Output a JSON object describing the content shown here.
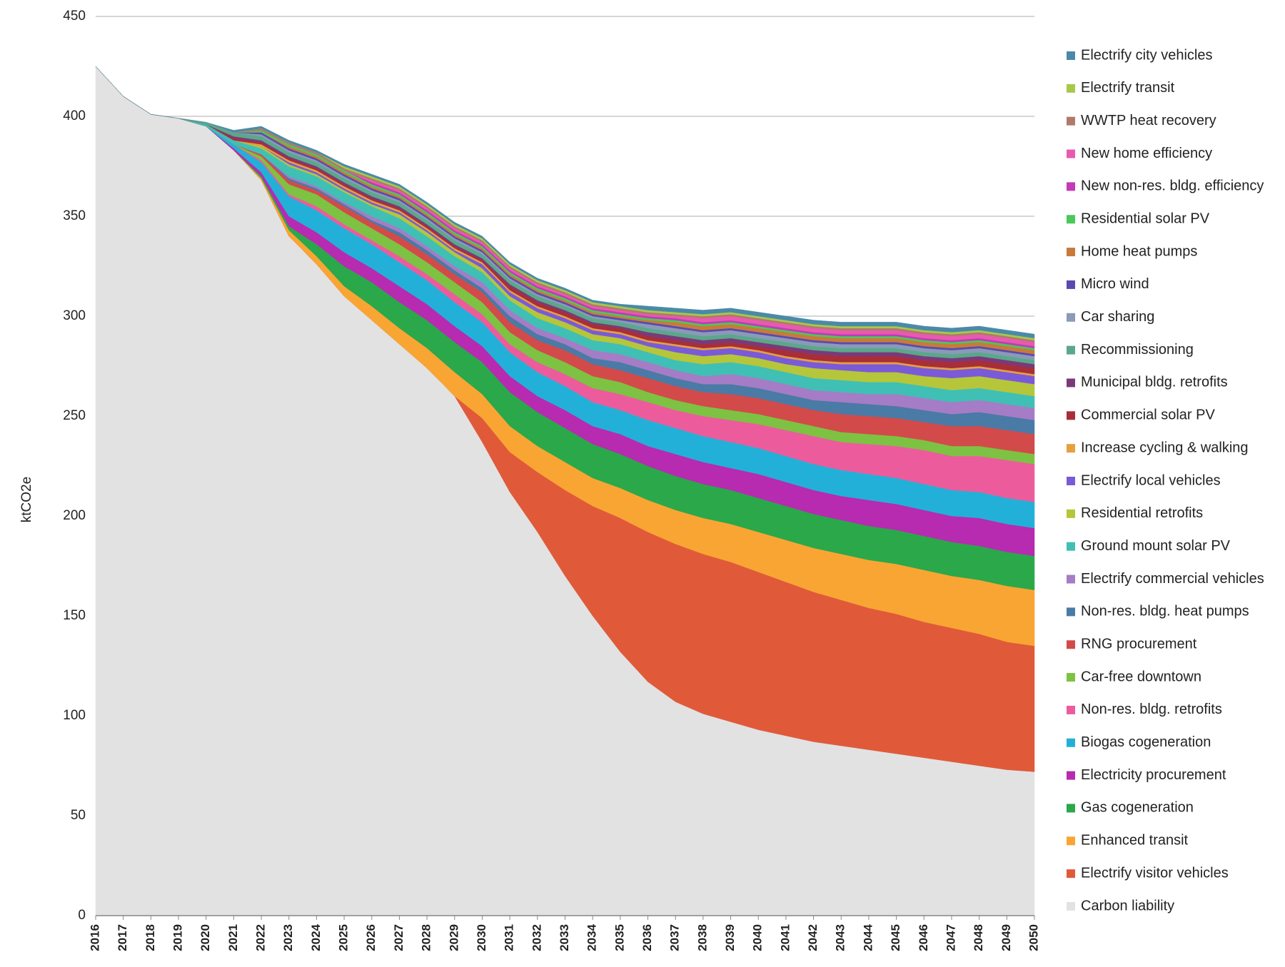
{
  "chart_data": {
    "type": "stacked_area",
    "y_label": "ktCO2e",
    "x": [
      2016,
      2017,
      2018,
      2019,
      2020,
      2021,
      2022,
      2023,
      2024,
      2025,
      2026,
      2027,
      2028,
      2029,
      2030,
      2031,
      2032,
      2033,
      2034,
      2035,
      2036,
      2037,
      2038,
      2039,
      2040,
      2041,
      2042,
      2043,
      2044,
      2045,
      2046,
      2047,
      2048,
      2049,
      2050
    ],
    "xlim": [
      2016,
      2050
    ],
    "xticks": [
      2016,
      2017,
      2018,
      2019,
      2020,
      2021,
      2022,
      2023,
      2024,
      2025,
      2026,
      2027,
      2028,
      2029,
      2030,
      2031,
      2032,
      2033,
      2034,
      2035,
      2036,
      2037,
      2038,
      2039,
      2040,
      2041,
      2042,
      2043,
      2044,
      2045,
      2046,
      2047,
      2048,
      2049,
      2050
    ],
    "ylim": [
      0,
      450
    ],
    "yticks": [
      0,
      50,
      100,
      150,
      200,
      250,
      300,
      350,
      400,
      450
    ],
    "grid": true,
    "legend": "right",
    "series": [
      {
        "name": "Carbon liability",
        "color": "#e2e2e2",
        "values": [
          425,
          410,
          401,
          399,
          395,
          383,
          368,
          340,
          326,
          310,
          298,
          286,
          274,
          260,
          237,
          212,
          192,
          170,
          150,
          132,
          117,
          107,
          101,
          97,
          93,
          90,
          87,
          85,
          83,
          81,
          79,
          77,
          75,
          73,
          72
        ]
      },
      {
        "name": "Electrify visitor vehicles",
        "color": "#e05a3a",
        "values": [
          0,
          0,
          0,
          0,
          0,
          0,
          0,
          0,
          0,
          0,
          0,
          0,
          0,
          0,
          12,
          20,
          30,
          43,
          55,
          67,
          75,
          79,
          80,
          80,
          79,
          77,
          75,
          73,
          71,
          70,
          68,
          67,
          66,
          64,
          63
        ]
      },
      {
        "name": "Enhanced transit",
        "color": "#f9a533",
        "values": [
          0,
          0,
          0,
          0,
          0,
          0,
          1,
          3,
          4,
          5,
          7,
          8,
          10,
          12,
          12,
          13,
          13,
          14,
          14,
          15,
          16,
          17,
          18,
          19,
          20,
          21,
          22,
          23,
          24,
          25,
          26,
          26,
          27,
          28,
          28
        ]
      },
      {
        "name": "Gas cogeneration",
        "color": "#2aa84a",
        "values": [
          0,
          0,
          0,
          0,
          0,
          0,
          1,
          2,
          6,
          10,
          12,
          13,
          14,
          15,
          16,
          17,
          17,
          17,
          17,
          17,
          17,
          17,
          17,
          17,
          17,
          17,
          17,
          17,
          17,
          17,
          17,
          17,
          17,
          17,
          17
        ]
      },
      {
        "name": "Electricity procurement",
        "color": "#b62bb0",
        "values": [
          0,
          0,
          0,
          0,
          0,
          1,
          2,
          5,
          6,
          7,
          7,
          8,
          8,
          8,
          8,
          8,
          8,
          9,
          9,
          10,
          10,
          11,
          11,
          11,
          12,
          12,
          12,
          12,
          13,
          13,
          13,
          13,
          14,
          14,
          14
        ]
      },
      {
        "name": "Biogas cogeneration",
        "color": "#23b0d8",
        "values": [
          0,
          0,
          0,
          0,
          0,
          2,
          5,
          10,
          11,
          12,
          12,
          12,
          12,
          12,
          12,
          12,
          12,
          12,
          12,
          12,
          13,
          13,
          13,
          13,
          13,
          13,
          13,
          13,
          13,
          13,
          13,
          13,
          13,
          13,
          13
        ]
      },
      {
        "name": "Non-res. bldg. retrofits",
        "color": "#ec5c9c",
        "values": [
          0,
          0,
          0,
          0,
          0,
          0,
          1,
          1,
          2,
          2,
          2,
          3,
          3,
          4,
          4,
          4,
          5,
          6,
          7,
          8,
          9,
          9,
          10,
          11,
          12,
          13,
          14,
          14,
          15,
          16,
          17,
          17,
          18,
          19,
          19
        ]
      },
      {
        "name": "Car-free downtown",
        "color": "#7dc242",
        "values": [
          0,
          0,
          0,
          0,
          0,
          0,
          2,
          5,
          6,
          6,
          6,
          6,
          6,
          6,
          6,
          6,
          6,
          6,
          6,
          6,
          5,
          5,
          5,
          5,
          5,
          5,
          5,
          5,
          5,
          5,
          5,
          5,
          5,
          5,
          5
        ]
      },
      {
        "name": "RNG procurement",
        "color": "#d34a4a",
        "values": [
          0,
          0,
          0,
          0,
          0,
          0,
          1,
          2,
          2,
          3,
          3,
          4,
          4,
          4,
          5,
          5,
          5,
          6,
          6,
          6,
          7,
          7,
          7,
          8,
          8,
          8,
          8,
          9,
          9,
          9,
          9,
          10,
          10,
          10,
          10
        ]
      },
      {
        "name": "Non-res. bldg. heat pumps",
        "color": "#4a7aa6",
        "values": [
          0,
          0,
          0,
          0,
          0,
          0,
          0,
          1,
          1,
          1,
          1,
          2,
          2,
          2,
          2,
          3,
          3,
          3,
          3,
          4,
          4,
          4,
          4,
          5,
          5,
          5,
          5,
          6,
          6,
          6,
          6,
          6,
          7,
          7,
          7
        ]
      },
      {
        "name": "Electrify commercial vehicles",
        "color": "#a57cc6",
        "values": [
          0,
          0,
          0,
          0,
          0,
          0,
          0,
          1,
          1,
          1,
          2,
          2,
          2,
          2,
          3,
          3,
          3,
          3,
          4,
          4,
          4,
          4,
          4,
          5,
          5,
          5,
          5,
          5,
          5,
          6,
          6,
          6,
          6,
          6,
          6
        ]
      },
      {
        "name": "Ground mount solar PV",
        "color": "#40bfb5",
        "values": [
          0,
          0,
          0,
          0,
          1,
          2,
          3,
          5,
          5,
          5,
          5,
          5,
          5,
          5,
          5,
          5,
          5,
          5,
          5,
          5,
          5,
          5,
          6,
          6,
          6,
          6,
          6,
          6,
          6,
          6,
          6,
          6,
          6,
          6,
          6
        ]
      },
      {
        "name": "Residential retrofits",
        "color": "#b5c63a",
        "values": [
          0,
          0,
          0,
          0,
          0,
          0,
          1,
          1,
          1,
          1,
          1,
          2,
          2,
          2,
          2,
          2,
          3,
          3,
          3,
          3,
          3,
          4,
          4,
          4,
          4,
          4,
          5,
          5,
          5,
          5,
          5,
          6,
          6,
          6,
          6
        ]
      },
      {
        "name": "Electrify local vehicles",
        "color": "#7a5ad8",
        "values": [
          0,
          0,
          0,
          0,
          0,
          0,
          0,
          1,
          1,
          1,
          1,
          1,
          1,
          1,
          2,
          2,
          2,
          2,
          2,
          2,
          2,
          3,
          3,
          3,
          3,
          3,
          3,
          3,
          4,
          4,
          4,
          4,
          4,
          4,
          4
        ]
      },
      {
        "name": "Increase cycling & walking",
        "color": "#e5a040",
        "values": [
          0,
          0,
          0,
          0,
          0,
          0,
          1,
          1,
          1,
          1,
          1,
          1,
          1,
          1,
          1,
          1,
          1,
          1,
          1,
          1,
          1,
          1,
          1,
          1,
          1,
          1,
          1,
          1,
          1,
          1,
          1,
          1,
          1,
          1,
          1
        ]
      },
      {
        "name": "Commercial solar PV",
        "color": "#a82e3a",
        "values": [
          0,
          0,
          0,
          0,
          0,
          1,
          1,
          1,
          1,
          1,
          1,
          1,
          1,
          1,
          1,
          2,
          2,
          2,
          2,
          2,
          2,
          2,
          2,
          2,
          2,
          3,
          3,
          3,
          3,
          3,
          3,
          3,
          3,
          3,
          3
        ]
      },
      {
        "name": "Municipal bldg. retrofits",
        "color": "#7a3a7a",
        "values": [
          0,
          0,
          0,
          0,
          0,
          1,
          1,
          1,
          1,
          1,
          1,
          1,
          1,
          1,
          1,
          1,
          1,
          1,
          1,
          1,
          2,
          2,
          2,
          2,
          2,
          2,
          2,
          2,
          2,
          2,
          2,
          2,
          2,
          2,
          2
        ]
      },
      {
        "name": "Recommissioning",
        "color": "#5aa88a",
        "values": [
          0,
          0,
          0,
          0,
          1,
          2,
          2,
          2,
          2,
          2,
          2,
          2,
          2,
          2,
          2,
          2,
          2,
          2,
          2,
          2,
          2,
          2,
          2,
          2,
          2,
          2,
          2,
          2,
          2,
          2,
          2,
          2,
          2,
          2,
          2
        ]
      },
      {
        "name": "Car sharing",
        "color": "#8a9ab8",
        "values": [
          0,
          0,
          0,
          0,
          0,
          0,
          1,
          1,
          1,
          1,
          1,
          1,
          1,
          1,
          1,
          1,
          1,
          1,
          1,
          1,
          2,
          2,
          2,
          2,
          2,
          2,
          2,
          2,
          2,
          2,
          2,
          2,
          2,
          2,
          2
        ]
      },
      {
        "name": "Micro wind",
        "color": "#5a4ab0",
        "values": [
          0,
          0,
          0,
          0,
          0,
          0,
          1,
          1,
          1,
          1,
          1,
          1,
          1,
          1,
          1,
          1,
          1,
          1,
          1,
          1,
          1,
          1,
          1,
          1,
          1,
          1,
          1,
          1,
          1,
          1,
          1,
          1,
          1,
          1,
          1
        ]
      },
      {
        "name": "Home heat pumps",
        "color": "#c87a3a",
        "values": [
          0,
          0,
          0,
          0,
          0,
          0,
          0,
          1,
          1,
          1,
          1,
          1,
          1,
          1,
          1,
          1,
          1,
          1,
          1,
          1,
          1,
          2,
          2,
          2,
          2,
          2,
          2,
          2,
          2,
          2,
          2,
          2,
          2,
          2,
          2
        ]
      },
      {
        "name": "Residential solar PV",
        "color": "#4ac85a",
        "values": [
          0,
          0,
          0,
          0,
          0,
          0,
          1,
          1,
          1,
          1,
          1,
          1,
          1,
          1,
          1,
          1,
          1,
          1,
          1,
          1,
          1,
          1,
          1,
          1,
          1,
          1,
          1,
          1,
          1,
          1,
          1,
          1,
          1,
          1,
          1
        ]
      },
      {
        "name": "New non-res. bldg. efficiency",
        "color": "#c43ab8",
        "values": [
          0,
          0,
          0,
          0,
          0,
          0,
          0,
          0,
          0,
          0,
          1,
          1,
          1,
          1,
          1,
          1,
          1,
          1,
          1,
          1,
          1,
          1,
          1,
          1,
          1,
          1,
          1,
          1,
          1,
          1,
          1,
          1,
          1,
          1,
          1
        ]
      },
      {
        "name": "New home efficiency",
        "color": "#e85ab0",
        "values": [
          0,
          0,
          0,
          0,
          0,
          0,
          0,
          0,
          0,
          0,
          1,
          1,
          1,
          1,
          1,
          1,
          1,
          1,
          1,
          1,
          1,
          1,
          2,
          2,
          2,
          2,
          2,
          2,
          2,
          2,
          2,
          2,
          2,
          2,
          2
        ]
      },
      {
        "name": "WWTP heat recovery",
        "color": "#b07a6a",
        "values": [
          0,
          0,
          0,
          0,
          0,
          0,
          1,
          1,
          1,
          1,
          1,
          1,
          1,
          1,
          1,
          1,
          1,
          1,
          1,
          1,
          1,
          1,
          1,
          1,
          1,
          1,
          1,
          1,
          1,
          1,
          1,
          1,
          1,
          1,
          1
        ]
      },
      {
        "name": "Electrify transit",
        "color": "#a8c84a",
        "values": [
          0,
          0,
          0,
          0,
          0,
          0,
          0,
          0,
          0,
          1,
          1,
          1,
          1,
          1,
          1,
          1,
          1,
          1,
          1,
          1,
          1,
          1,
          1,
          1,
          1,
          1,
          1,
          1,
          1,
          1,
          1,
          1,
          1,
          1,
          1
        ]
      },
      {
        "name": "Electrify city vehicles",
        "color": "#4a8aa8",
        "values": [
          0,
          0,
          0,
          0,
          0,
          1,
          1,
          1,
          1,
          1,
          1,
          1,
          1,
          1,
          1,
          1,
          1,
          1,
          1,
          1,
          2,
          2,
          2,
          2,
          2,
          2,
          2,
          2,
          2,
          2,
          2,
          2,
          2,
          2,
          2
        ]
      }
    ]
  }
}
